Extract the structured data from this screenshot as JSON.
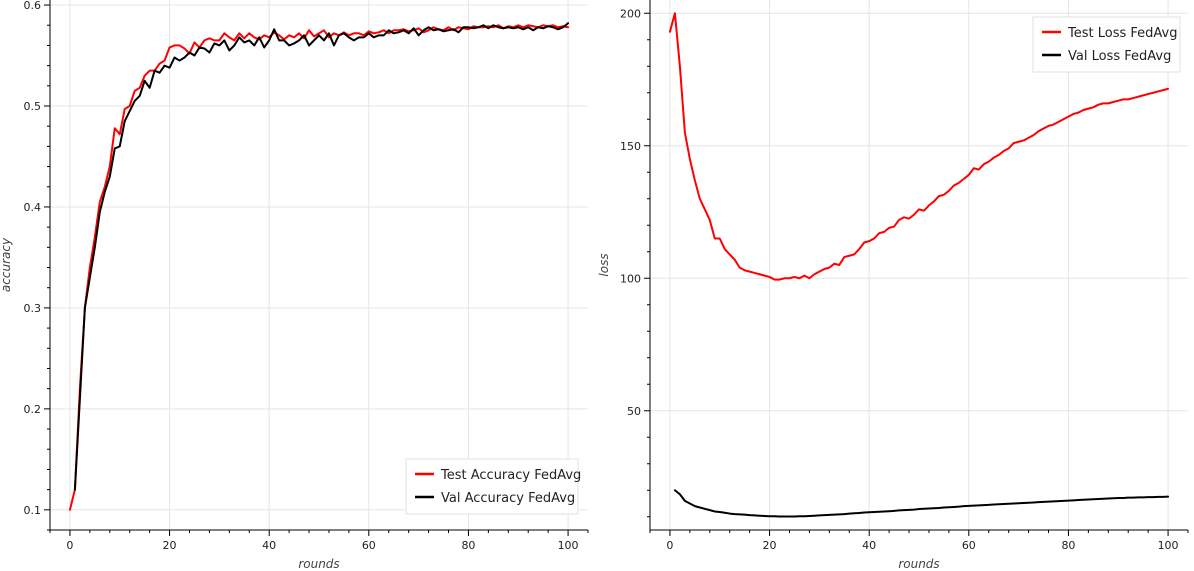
{
  "chart_data": [
    {
      "type": "line",
      "xlabel": "rounds",
      "ylabel": "accuracy",
      "xlim": [
        -4,
        104
      ],
      "ylim": [
        0.08,
        0.605
      ],
      "xticks": [
        0,
        20,
        40,
        60,
        80,
        100
      ],
      "yticks": [
        0.1,
        0.2,
        0.3,
        0.4,
        0.5,
        0.6
      ],
      "ytick_labels": [
        "0.1",
        "0.2",
        "0.3",
        "0.4",
        "0.5",
        "0.6"
      ],
      "grid": true,
      "legend_position": "bottom-right",
      "series": [
        {
          "name": "Test Accuracy FedAvg",
          "color": "#ff0000",
          "x": [
            0,
            1,
            2,
            3,
            4,
            5,
            6,
            7,
            8,
            9,
            10,
            11,
            12,
            13,
            14,
            15,
            16,
            17,
            18,
            19,
            20,
            21,
            22,
            23,
            24,
            25,
            26,
            27,
            28,
            29,
            30,
            31,
            32,
            33,
            34,
            35,
            36,
            37,
            38,
            39,
            40,
            41,
            42,
            43,
            44,
            45,
            46,
            47,
            48,
            49,
            50,
            51,
            52,
            53,
            54,
            55,
            56,
            57,
            58,
            59,
            60,
            61,
            62,
            63,
            64,
            65,
            66,
            67,
            68,
            69,
            70,
            71,
            72,
            73,
            74,
            75,
            76,
            77,
            78,
            79,
            80,
            81,
            82,
            83,
            84,
            85,
            86,
            87,
            88,
            89,
            90,
            91,
            92,
            93,
            94,
            95,
            96,
            97,
            98,
            99,
            100
          ],
          "values": [
            0.1,
            0.12,
            0.22,
            0.3,
            0.34,
            0.37,
            0.405,
            0.42,
            0.44,
            0.478,
            0.472,
            0.497,
            0.5,
            0.515,
            0.518,
            0.53,
            0.535,
            0.535,
            0.542,
            0.545,
            0.558,
            0.56,
            0.56,
            0.557,
            0.552,
            0.563,
            0.558,
            0.565,
            0.567,
            0.565,
            0.565,
            0.572,
            0.568,
            0.565,
            0.572,
            0.567,
            0.572,
            0.568,
            0.566,
            0.57,
            0.568,
            0.573,
            0.57,
            0.566,
            0.57,
            0.568,
            0.572,
            0.567,
            0.575,
            0.569,
            0.572,
            0.575,
            0.568,
            0.572,
            0.57,
            0.573,
            0.57,
            0.572,
            0.572,
            0.57,
            0.574,
            0.572,
            0.573,
            0.575,
            0.572,
            0.575,
            0.575,
            0.576,
            0.574,
            0.575,
            0.577,
            0.573,
            0.575,
            0.578,
            0.576,
            0.575,
            0.578,
            0.575,
            0.578,
            0.577,
            0.576,
            0.579,
            0.578,
            0.578,
            0.579,
            0.578,
            0.58,
            0.577,
            0.579,
            0.578,
            0.58,
            0.578,
            0.58,
            0.579,
            0.578,
            0.58,
            0.579,
            0.58,
            0.578,
            0.579,
            0.578
          ]
        },
        {
          "name": "Val Accuracy FedAvg",
          "color": "#000000",
          "x": [
            0,
            1,
            2,
            3,
            4,
            5,
            6,
            7,
            8,
            9,
            10,
            11,
            12,
            13,
            14,
            15,
            16,
            17,
            18,
            19,
            20,
            21,
            22,
            23,
            24,
            25,
            26,
            27,
            28,
            29,
            30,
            31,
            32,
            33,
            34,
            35,
            36,
            37,
            38,
            39,
            40,
            41,
            42,
            43,
            44,
            45,
            46,
            47,
            48,
            49,
            50,
            51,
            52,
            53,
            54,
            55,
            56,
            57,
            58,
            59,
            60,
            61,
            62,
            63,
            64,
            65,
            66,
            67,
            68,
            69,
            70,
            71,
            72,
            73,
            74,
            75,
            76,
            77,
            78,
            79,
            80,
            81,
            82,
            83,
            84,
            85,
            86,
            87,
            88,
            89,
            90,
            91,
            92,
            93,
            94,
            95,
            96,
            97,
            98,
            99,
            100
          ],
          "values": [
            null,
            0.12,
            0.21,
            0.3,
            0.33,
            0.36,
            0.395,
            0.415,
            0.43,
            0.458,
            0.46,
            0.485,
            0.495,
            0.505,
            0.51,
            0.525,
            0.518,
            0.535,
            0.533,
            0.54,
            0.538,
            0.548,
            0.545,
            0.548,
            0.553,
            0.55,
            0.558,
            0.557,
            0.553,
            0.562,
            0.56,
            0.565,
            0.555,
            0.56,
            0.568,
            0.563,
            0.565,
            0.56,
            0.568,
            0.558,
            0.565,
            0.576,
            0.565,
            0.565,
            0.56,
            0.562,
            0.565,
            0.57,
            0.56,
            0.565,
            0.57,
            0.565,
            0.572,
            0.56,
            0.57,
            0.572,
            0.568,
            0.565,
            0.568,
            0.568,
            0.572,
            0.568,
            0.57,
            0.57,
            0.575,
            0.572,
            0.573,
            0.575,
            0.572,
            0.577,
            0.57,
            0.575,
            0.578,
            0.575,
            0.576,
            0.574,
            0.575,
            0.576,
            0.573,
            0.578,
            0.578,
            0.577,
            0.578,
            0.58,
            0.577,
            0.58,
            0.578,
            0.577,
            0.578,
            0.577,
            0.578,
            0.576,
            0.578,
            0.575,
            0.578,
            0.577,
            0.579,
            0.578,
            0.576,
            0.578,
            0.582
          ]
        }
      ]
    },
    {
      "type": "line",
      "xlabel": "rounds",
      "ylabel": "loss",
      "xlim": [
        -4,
        104
      ],
      "ylim": [
        5,
        205
      ],
      "xticks": [
        0,
        20,
        40,
        60,
        80,
        100
      ],
      "yticks": [
        50,
        100,
        150,
        200
      ],
      "ytick_labels": [
        "50",
        "100",
        "150",
        "200"
      ],
      "grid": true,
      "legend_position": "top-right",
      "series": [
        {
          "name": "Test Loss FedAvg",
          "color": "#ff0000",
          "x": [
            0,
            1,
            2,
            3,
            4,
            5,
            6,
            7,
            8,
            9,
            10,
            11,
            12,
            13,
            14,
            15,
            16,
            17,
            18,
            19,
            20,
            21,
            22,
            23,
            24,
            25,
            26,
            27,
            28,
            29,
            30,
            31,
            32,
            33,
            34,
            35,
            36,
            37,
            38,
            39,
            40,
            41,
            42,
            43,
            44,
            45,
            46,
            47,
            48,
            49,
            50,
            51,
            52,
            53,
            54,
            55,
            56,
            57,
            58,
            59,
            60,
            61,
            62,
            63,
            64,
            65,
            66,
            67,
            68,
            69,
            70,
            71,
            72,
            73,
            74,
            75,
            76,
            77,
            78,
            79,
            80,
            81,
            82,
            83,
            84,
            85,
            86,
            87,
            88,
            89,
            90,
            91,
            92,
            93,
            94,
            95,
            96,
            97,
            98,
            99,
            100
          ],
          "values": [
            193,
            200,
            180,
            155,
            145,
            137,
            130,
            126,
            122,
            115,
            115,
            111,
            109,
            107,
            104,
            103,
            102.5,
            102,
            101.5,
            101,
            100.5,
            99.5,
            99.5,
            100,
            100,
            100.5,
            100,
            101,
            100,
            101.5,
            102.5,
            103.5,
            104,
            105.5,
            105,
            108,
            108.5,
            109,
            111,
            113.5,
            114,
            115,
            117,
            117.5,
            119,
            119.5,
            122,
            123,
            122.5,
            124,
            126,
            125.5,
            127.5,
            129,
            131,
            131.5,
            133,
            135,
            136,
            137.5,
            139,
            141.5,
            141,
            143,
            144,
            145.5,
            146.5,
            148,
            149,
            151,
            151.5,
            152,
            153,
            154,
            155.5,
            156.5,
            157.5,
            158,
            159,
            160,
            161,
            162,
            162.5,
            163.5,
            164,
            164.5,
            165.5,
            166,
            166,
            166.5,
            167,
            167.5,
            167.5,
            168,
            168.5,
            169,
            169.5,
            170,
            170.5,
            171,
            171.5
          ]
        },
        {
          "name": "Val Loss FedAvg",
          "color": "#000000",
          "x": [
            1,
            2,
            3,
            4,
            5,
            6,
            7,
            8,
            9,
            10,
            11,
            12,
            13,
            14,
            15,
            16,
            17,
            18,
            19,
            20,
            21,
            22,
            23,
            24,
            25,
            26,
            27,
            28,
            29,
            30,
            31,
            32,
            33,
            34,
            35,
            36,
            37,
            38,
            39,
            40,
            41,
            42,
            43,
            44,
            45,
            46,
            47,
            48,
            49,
            50,
            51,
            52,
            53,
            54,
            55,
            56,
            57,
            58,
            59,
            60,
            61,
            62,
            63,
            64,
            65,
            66,
            67,
            68,
            69,
            70,
            71,
            72,
            73,
            74,
            75,
            76,
            77,
            78,
            79,
            80,
            81,
            82,
            83,
            84,
            85,
            86,
            87,
            88,
            89,
            90,
            91,
            92,
            93,
            94,
            95,
            96,
            97,
            98,
            99,
            100
          ],
          "values": [
            20,
            18.5,
            16,
            15,
            14,
            13.5,
            13,
            12.5,
            12,
            11.8,
            11.5,
            11.2,
            11,
            10.9,
            10.8,
            10.6,
            10.5,
            10.4,
            10.3,
            10.2,
            10.2,
            10.1,
            10.1,
            10.1,
            10.1,
            10.2,
            10.2,
            10.3,
            10.4,
            10.5,
            10.6,
            10.7,
            10.8,
            10.9,
            11,
            11.2,
            11.3,
            11.4,
            11.6,
            11.7,
            11.8,
            11.9,
            12,
            12.1,
            12.2,
            12.4,
            12.5,
            12.6,
            12.7,
            12.9,
            13,
            13.1,
            13.2,
            13.3,
            13.5,
            13.6,
            13.7,
            13.8,
            14,
            14.1,
            14.2,
            14.3,
            14.4,
            14.5,
            14.6,
            14.7,
            14.8,
            14.9,
            15,
            15.1,
            15.2,
            15.3,
            15.4,
            15.5,
            15.6,
            15.7,
            15.8,
            15.9,
            16,
            16.1,
            16.2,
            16.3,
            16.4,
            16.5,
            16.6,
            16.7,
            16.8,
            16.9,
            17,
            17.1,
            17.1,
            17.2,
            17.2,
            17.3,
            17.3,
            17.4,
            17.4,
            17.5,
            17.5,
            17.6
          ]
        }
      ]
    }
  ]
}
